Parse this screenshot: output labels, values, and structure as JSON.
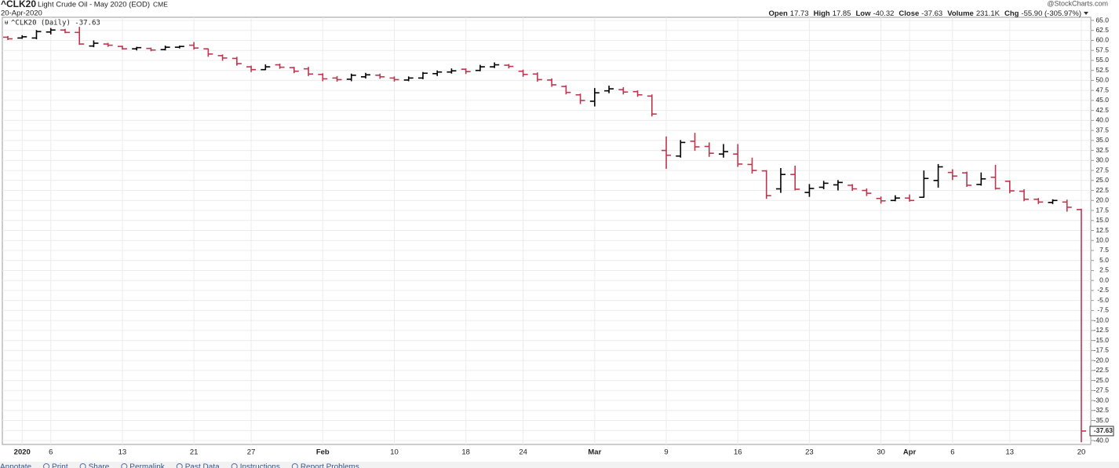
{
  "chart_data": {
    "type": "ohlc",
    "title": "^CLK20",
    "subtitle": "Light Crude Oil - May 2020 (EOD)",
    "exchange": "CME",
    "date": "20-Apr-2020",
    "brand": "@StockCharts.com",
    "legend": "^CLK20 (Daily) -37.63",
    "last_price_label": "-37.63",
    "stats": [
      {
        "label": "Open",
        "value": "17.73"
      },
      {
        "label": "High",
        "value": "17.85"
      },
      {
        "label": "Low",
        "value": "-40.32"
      },
      {
        "label": "Close",
        "value": "-37.63"
      },
      {
        "label": "Volume",
        "value": "231.1K"
      },
      {
        "label": "Chg",
        "value": "-55.90 (-305.97%)"
      }
    ],
    "toolbar": [
      "Annotate",
      "Print",
      "Share",
      "Permalink",
      "Past Data",
      "Instructions",
      "Report Problems"
    ],
    "up_color": "#000000",
    "down_color": "#c0364f",
    "grid": true,
    "categories": [
      null,
      "2020",
      null,
      "6",
      null,
      null,
      null,
      null,
      "13",
      null,
      null,
      null,
      null,
      "21",
      null,
      null,
      null,
      "27",
      null,
      null,
      null,
      null,
      "Feb",
      null,
      null,
      null,
      null,
      "10",
      null,
      null,
      null,
      null,
      "18",
      null,
      null,
      null,
      "24",
      null,
      null,
      null,
      null,
      "Mar",
      null,
      null,
      null,
      null,
      "9",
      null,
      null,
      null,
      null,
      "16",
      null,
      null,
      null,
      null,
      "23",
      null,
      null,
      null,
      null,
      "30",
      null,
      "Apr",
      null,
      null,
      "6",
      null,
      null,
      null,
      "13",
      null,
      null,
      null,
      null,
      "20"
    ],
    "bold_categories": [
      "2020",
      "Feb",
      "Mar",
      "Apr"
    ],
    "open": [
      60.8,
      60.6,
      60.6,
      62.1,
      62.6,
      62.0,
      58.6,
      59.1,
      58.5,
      57.9,
      58.0,
      57.7,
      58.3,
      58.8,
      57.9,
      56.2,
      55.5,
      53.4,
      52.7,
      53.9,
      53.2,
      52.9,
      51.5,
      50.6,
      50.3,
      50.9,
      51.3,
      50.6,
      50.1,
      50.6,
      51.7,
      52.1,
      52.8,
      52.5,
      53.4,
      53.8,
      52.3,
      51.6,
      50.1,
      48.5,
      46.4,
      44.8,
      47.4,
      47.7,
      47.2,
      46.1,
      32.5,
      31.1,
      34.8,
      33.5,
      31.6,
      31.6,
      29.0,
      27.4,
      22.9,
      26.5,
      22.0,
      23.3,
      23.9,
      23.8,
      22.5,
      20.5,
      20.0,
      20.6,
      20.8,
      25.0,
      27.0,
      26.9,
      24.0,
      25.8,
      24.8,
      22.3,
      20.3,
      19.5,
      19.6,
      17.73
    ],
    "high": [
      61.0,
      61.2,
      62.5,
      63.0,
      62.8,
      63.3,
      59.9,
      59.3,
      58.6,
      58.3,
      58.1,
      58.6,
      58.6,
      59.5,
      57.9,
      56.4,
      55.8,
      53.6,
      53.9,
      54.1,
      53.3,
      53.3,
      51.7,
      51.0,
      51.6,
      51.8,
      51.6,
      50.9,
      50.9,
      52.0,
      52.4,
      52.9,
      52.9,
      53.8,
      54.4,
      54.0,
      52.6,
      51.9,
      50.4,
      48.7,
      46.6,
      48.0,
      48.6,
      48.2,
      47.4,
      46.4,
      35.9,
      35.0,
      36.8,
      34.4,
      34.0,
      34.0,
      30.6,
      27.5,
      28.0,
      28.6,
      24.0,
      24.8,
      25.0,
      24.0,
      22.9,
      20.9,
      21.2,
      21.4,
      27.4,
      29.0,
      27.7,
      27.1,
      26.9,
      28.8,
      24.9,
      22.7,
      20.5,
      20.2,
      20.1,
      17.85
    ],
    "low": [
      60.2,
      60.5,
      60.4,
      61.6,
      61.9,
      59.0,
      58.4,
      58.5,
      57.8,
      57.6,
      57.4,
      57.6,
      58.1,
      57.8,
      56.0,
      55.0,
      53.8,
      52.2,
      52.7,
      53.0,
      51.9,
      51.2,
      49.9,
      49.8,
      49.9,
      50.6,
      50.5,
      49.8,
      49.9,
      50.4,
      51.2,
      51.8,
      51.7,
      52.4,
      53.2,
      53.1,
      51.0,
      49.8,
      48.5,
      46.6,
      44.2,
      43.6,
      46.9,
      46.6,
      46.0,
      41.1,
      28.0,
      30.8,
      32.5,
      31.0,
      30.8,
      28.5,
      26.8,
      20.5,
      22.0,
      22.6,
      21.0,
      22.9,
      22.6,
      22.5,
      21.2,
      19.3,
      19.9,
      19.8,
      20.8,
      23.3,
      25.2,
      23.5,
      23.8,
      22.8,
      21.9,
      19.9,
      19.2,
      19.2,
      17.3,
      -40.32
    ],
    "close": [
      60.4,
      60.9,
      62.2,
      62.6,
      62.0,
      59.1,
      59.3,
      58.8,
      57.9,
      58.2,
      57.6,
      58.3,
      58.5,
      58.1,
      56.6,
      55.6,
      54.2,
      52.7,
      53.4,
      53.3,
      52.3,
      51.6,
      50.4,
      50.2,
      51.3,
      51.4,
      50.9,
      50.2,
      50.6,
      51.8,
      52.1,
      52.4,
      52.2,
      53.4,
      53.9,
      53.5,
      51.5,
      50.2,
      48.9,
      47.0,
      45.0,
      46.9,
      47.9,
      47.1,
      46.4,
      41.6,
      31.3,
      34.5,
      33.4,
      31.8,
      32.2,
      29.1,
      27.5,
      21.2,
      26.5,
      22.8,
      23.0,
      24.3,
      24.5,
      22.9,
      21.8,
      19.9,
      20.6,
      20.0,
      25.5,
      28.4,
      26.1,
      23.8,
      25.4,
      23.0,
      22.4,
      20.3,
      19.6,
      20.0,
      18.3,
      -37.63
    ],
    "ylim": [
      -40,
      65
    ],
    "yticks": [
      {
        "value": 65,
        "label": "65.0"
      },
      {
        "value": 62.5,
        "label": "62.5"
      },
      {
        "value": 60,
        "label": "60.0"
      },
      {
        "value": 57.5,
        "label": "57.5"
      },
      {
        "value": 55,
        "label": "55.0"
      },
      {
        "value": 52.5,
        "label": "52.5"
      },
      {
        "value": 50,
        "label": "50.0"
      },
      {
        "value": 47.5,
        "label": "47.5"
      },
      {
        "value": 45,
        "label": "45.0"
      },
      {
        "value": 42.5,
        "label": "42.5"
      },
      {
        "value": 40,
        "label": "40.0"
      },
      {
        "value": 37.5,
        "label": "37.5"
      },
      {
        "value": 35,
        "label": "35.0"
      },
      {
        "value": 32.5,
        "label": "32.5"
      },
      {
        "value": 30,
        "label": "30.0"
      },
      {
        "value": 27.5,
        "label": "27.5"
      },
      {
        "value": 25,
        "label": "25.0"
      },
      {
        "value": 22.5,
        "label": "22.5"
      },
      {
        "value": 20,
        "label": "20.0"
      },
      {
        "value": 17.5,
        "label": "17.5"
      },
      {
        "value": 15,
        "label": "15.0"
      },
      {
        "value": 12.5,
        "label": "12.5"
      },
      {
        "value": 10,
        "label": "10.0"
      },
      {
        "value": 7.5,
        "label": "7.5"
      },
      {
        "value": 5,
        "label": "5.0"
      },
      {
        "value": 2.5,
        "label": "2.5"
      },
      {
        "value": 0,
        "label": "0.0"
      },
      {
        "value": -2.5,
        "label": "-2.5"
      },
      {
        "value": -5,
        "label": "-5.0"
      },
      {
        "value": -7.5,
        "label": "-7.5"
      },
      {
        "value": -10,
        "label": "-10.0"
      },
      {
        "value": -12.5,
        "label": "-12.5"
      },
      {
        "value": -15,
        "label": "-15.0"
      },
      {
        "value": -17.5,
        "label": "-17.5"
      },
      {
        "value": -20,
        "label": "-20.0"
      },
      {
        "value": -22.5,
        "label": "-22.5"
      },
      {
        "value": -25,
        "label": "-25.0"
      },
      {
        "value": -27.5,
        "label": "-27.5"
      },
      {
        "value": -30,
        "label": "-30.0"
      },
      {
        "value": -32.5,
        "label": "-32.5"
      },
      {
        "value": -35,
        "label": "-35.0"
      },
      {
        "value": -37.5,
        "label": "-37.5"
      },
      {
        "value": -40,
        "label": "-40.0"
      }
    ]
  }
}
